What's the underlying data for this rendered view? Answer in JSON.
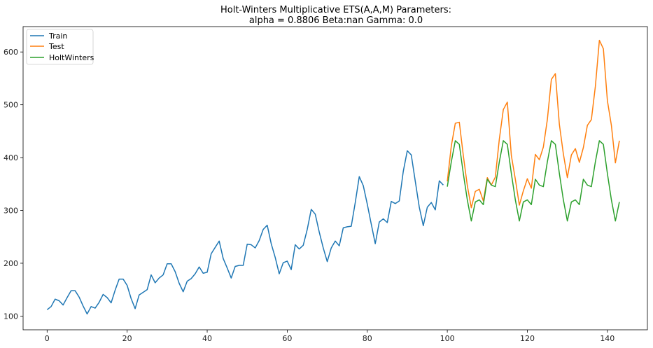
{
  "chart_data": {
    "type": "line",
    "title_line1": "Holt-Winters Multiplicative ETS(A,A,M) Parameters:",
    "title_line2": "alpha = 0.8806  Beta:nan  Gamma: 0.0",
    "xlabel": "",
    "ylabel": "",
    "xlim": [
      -6,
      150
    ],
    "ylim": [
      74,
      648
    ],
    "xticks": [
      0,
      20,
      40,
      60,
      80,
      100,
      120,
      140
    ],
    "yticks": [
      100,
      200,
      300,
      400,
      500,
      600
    ],
    "legend_position": "upper-left",
    "series": [
      {
        "name": "Train",
        "color": "#1f77b4",
        "x_start": 0,
        "values": [
          112,
          118,
          132,
          129,
          121,
          135,
          148,
          148,
          136,
          119,
          104,
          118,
          115,
          126,
          141,
          135,
          125,
          149,
          170,
          170,
          158,
          133,
          114,
          140,
          145,
          150,
          178,
          163,
          172,
          178,
          199,
          199,
          184,
          162,
          146,
          166,
          171,
          180,
          193,
          181,
          183,
          218,
          230,
          242,
          209,
          191,
          172,
          194,
          196,
          196,
          236,
          235,
          229,
          243,
          264,
          272,
          237,
          211,
          180,
          201,
          204,
          188,
          235,
          227,
          234,
          264,
          302,
          293,
          259,
          229,
          203,
          229,
          242,
          233,
          267,
          269,
          270,
          315,
          364,
          347,
          312,
          274,
          237,
          278,
          284,
          277,
          317,
          313,
          318,
          374,
          413,
          405,
          355,
          306,
          271,
          306,
          315,
          301,
          356,
          348
        ]
      },
      {
        "name": "Test",
        "color": "#ff7f0e",
        "x_start": 100,
        "values": [
          355,
          422,
          465,
          467,
          404,
          347,
          305,
          336,
          340,
          318,
          362,
          348,
          363,
          435,
          491,
          505,
          404,
          359,
          310,
          337,
          360,
          342,
          406,
          396,
          420,
          472,
          548,
          559,
          463,
          407,
          362,
          405,
          417,
          391,
          419,
          461,
          472,
          535,
          622,
          606,
          508,
          461,
          390,
          432
        ]
      },
      {
        "name": "HoltWinters",
        "color": "#2ca02c",
        "x_start": 100,
        "values": [
          345,
          392,
          432,
          425,
          370,
          320,
          280,
          316,
          320,
          311,
          359,
          348,
          345,
          392,
          432,
          425,
          370,
          320,
          280,
          316,
          320,
          311,
          359,
          348,
          345,
          392,
          432,
          425,
          370,
          320,
          280,
          316,
          320,
          311,
          359,
          348,
          345,
          392,
          432,
          425,
          370,
          320,
          280,
          316
        ]
      }
    ]
  }
}
